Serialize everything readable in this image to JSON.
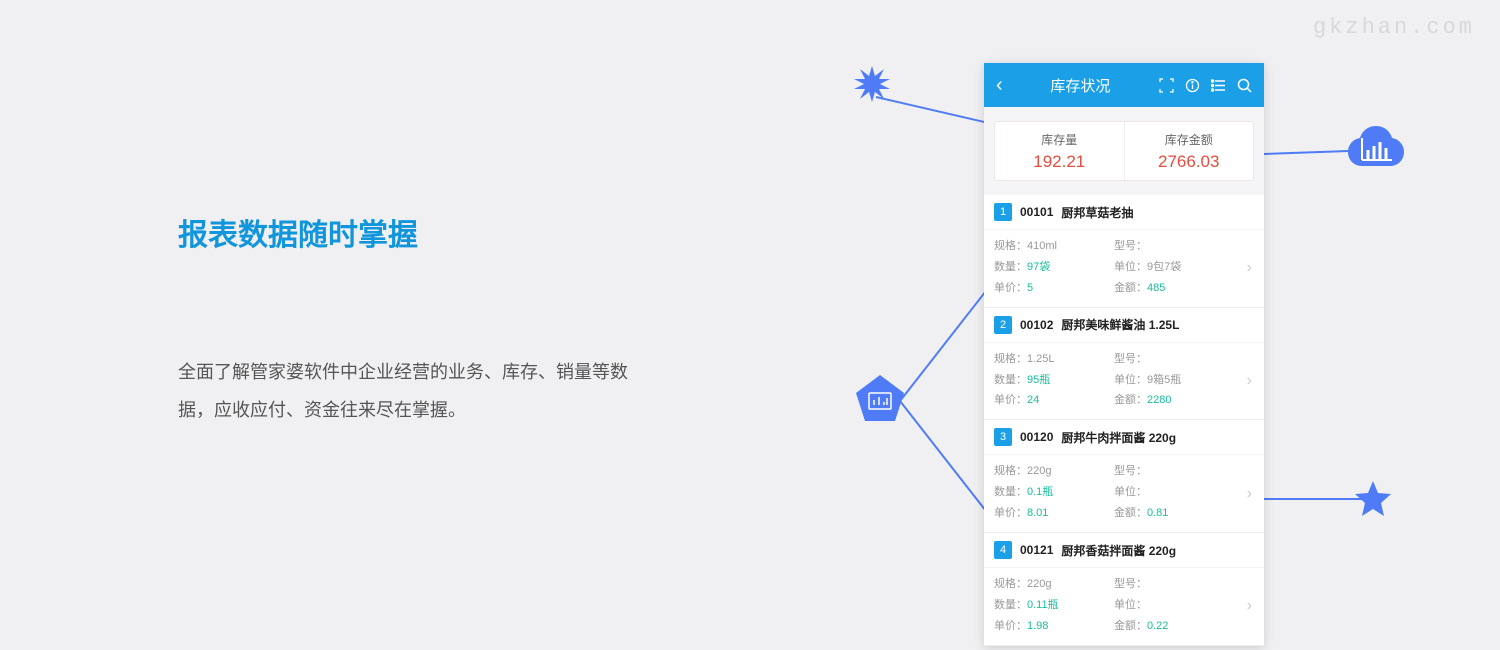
{
  "watermark": "gkzhan.com",
  "colors": {
    "bg": "#f0f0f2",
    "accent_blue": "#1ba0e8",
    "heading_blue": "#1296db",
    "decoration_blue": "#4f7cf6",
    "value_red": "#e74c3c",
    "value_teal": "#1abc9c",
    "text_gray": "#999",
    "text_dark": "#555"
  },
  "left": {
    "heading": "报表数据随时掌握",
    "description": "全面了解管家婆软件中企业经营的业务、库存、销量等数据，应收应付、资金往来尽在掌握。"
  },
  "phone": {
    "title": "库存状况",
    "summary": [
      {
        "label": "库存量",
        "value": "192.21"
      },
      {
        "label": "库存金额",
        "value": "2766.03"
      }
    ],
    "field_labels": {
      "spec": "规格：",
      "model": "型号：",
      "qty": "数量：",
      "unit": "单位：",
      "price": "单价：",
      "amount": "金额："
    },
    "items": [
      {
        "n": "1",
        "code": "00101",
        "name": "厨邦草菇老抽",
        "spec": "410ml",
        "model": "",
        "qty": "97袋",
        "unit": "9包7袋",
        "price": "5",
        "amount": "485"
      },
      {
        "n": "2",
        "code": "00102",
        "name": "厨邦美味鲜酱油 1.25L",
        "spec": "1.25L",
        "model": "",
        "qty": "95瓶",
        "unit": "9箱5瓶",
        "price": "24",
        "amount": "2280"
      },
      {
        "n": "3",
        "code": "00120",
        "name": "厨邦牛肉拌面酱 220g",
        "spec": "220g",
        "model": "",
        "qty": "0.1瓶",
        "unit": "",
        "price": "8.01",
        "amount": "0.81"
      },
      {
        "n": "4",
        "code": "00121",
        "name": "厨邦香菇拌面酱 220g",
        "spec": "220g",
        "model": "",
        "qty": "0.11瓶",
        "unit": "",
        "price": "1.98",
        "amount": "0.22"
      }
    ]
  },
  "lines": [
    {
      "from": [
        900,
        400
      ],
      "to": [
        984,
        290
      ],
      "len": 140,
      "angle": -52
    },
    {
      "from": [
        900,
        400
      ],
      "to": [
        984,
        510
      ],
      "len": 140,
      "angle": 52
    },
    {
      "from": [
        876,
        96
      ],
      "to": [
        984,
        122
      ],
      "len": 112,
      "angle": 13
    },
    {
      "from": [
        1264,
        153
      ],
      "to": [
        1350,
        150
      ],
      "len": 88,
      "angle": -2
    },
    {
      "from": [
        1264,
        498
      ],
      "to": [
        1360,
        498
      ],
      "len": 98,
      "angle": 0
    }
  ]
}
